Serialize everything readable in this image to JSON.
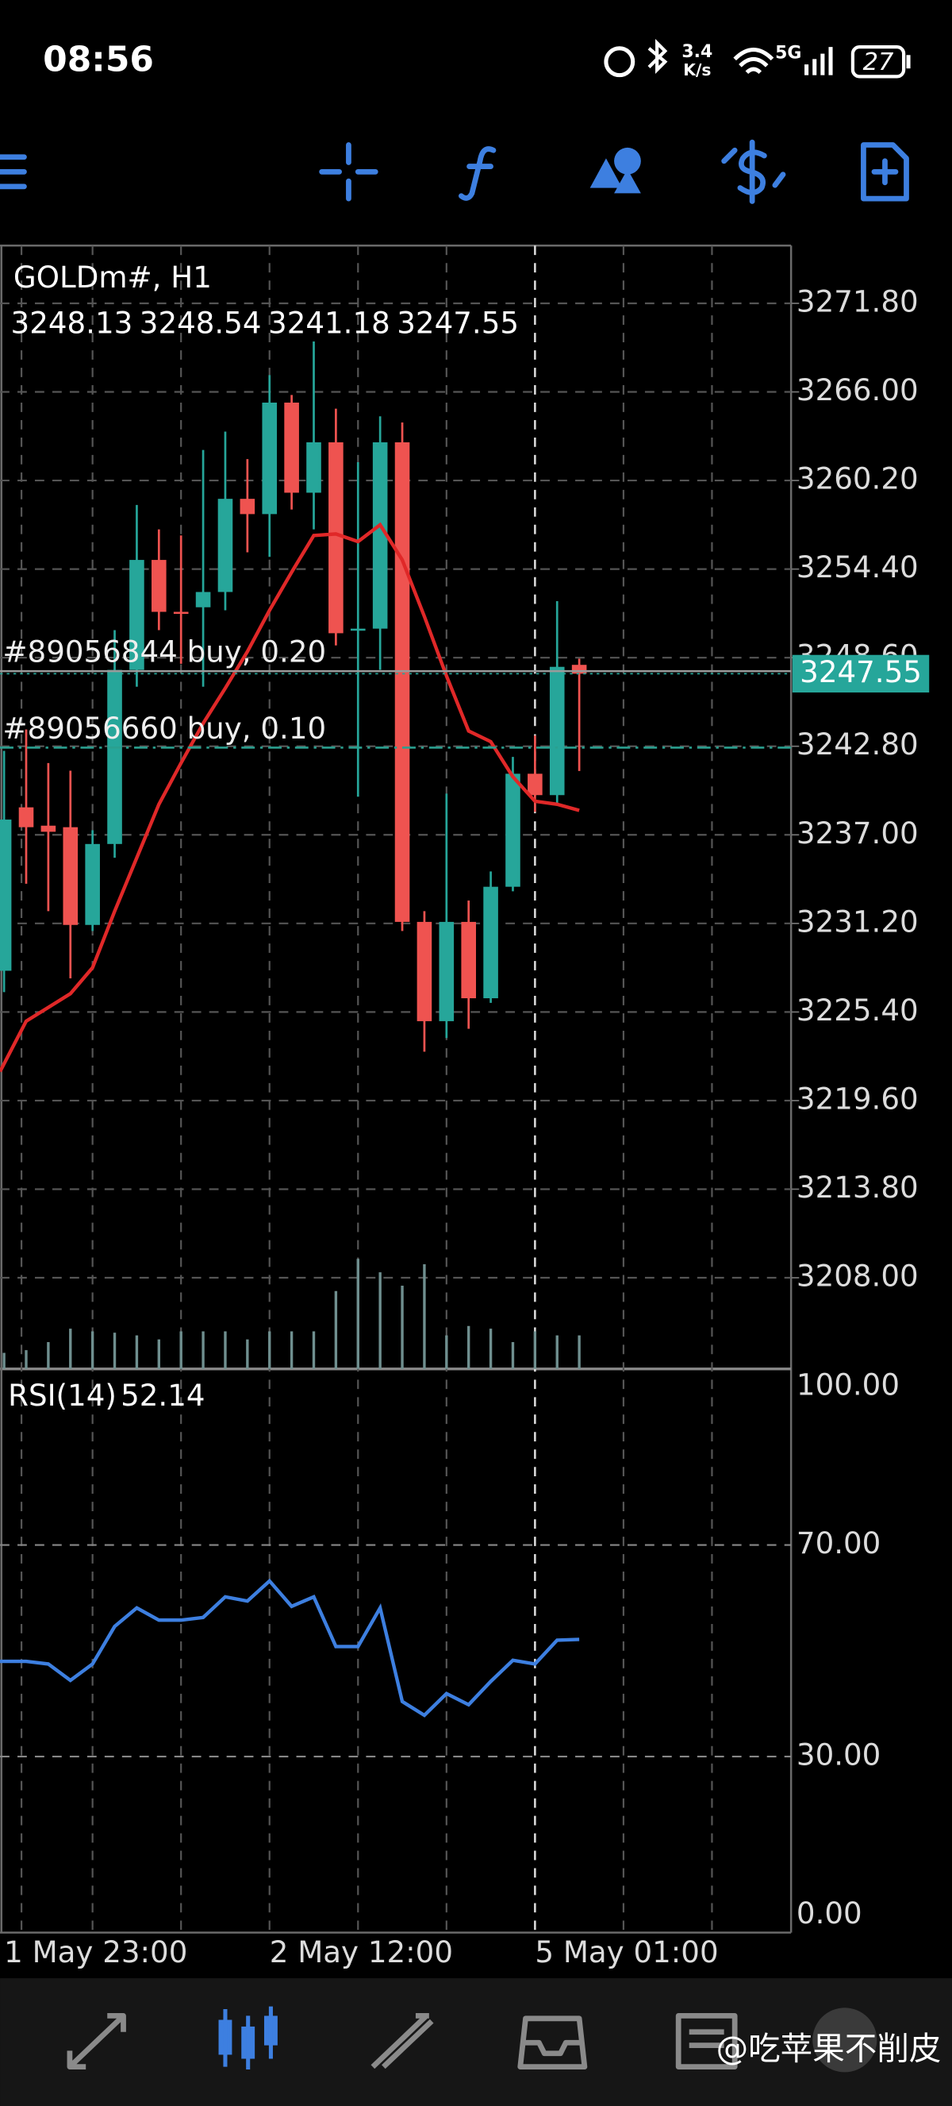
{
  "status_bar": {
    "time": "08:56",
    "net_speed": "3.4",
    "net_unit": "K/s",
    "network": "5G",
    "battery": "27"
  },
  "chart_data": {
    "type": "candlestick",
    "title": "GOLDm#, H1",
    "categories": [
      "1 May 23:00",
      null,
      null,
      null,
      null,
      null,
      null,
      null,
      null,
      null,
      null,
      null,
      "2 May 12:00",
      null,
      null,
      null,
      null,
      null,
      null,
      null,
      null,
      null,
      null,
      null,
      "5 May 01:00",
      null,
      null
    ],
    "open": [
      3228.1,
      3238.8,
      3237.6,
      3237.5,
      3231.1,
      3236.4,
      3247.8,
      3255.0,
      3251.6,
      3251.9,
      3252.9,
      3259.0,
      3258.0,
      3265.3,
      3259.4,
      3262.7,
      3250.4,
      3250.5,
      3262.7,
      3231.3,
      3224.8,
      3231.3,
      3226.3,
      3233.6,
      3241.0,
      3239.6,
      3248.13
    ],
    "high": [
      3242.5,
      3243.9,
      3241.7,
      3241.2,
      3237.3,
      3250.4,
      3258.6,
      3257.0,
      3256.6,
      3262.2,
      3263.4,
      3261.6,
      3267.1,
      3265.8,
      3269.3,
      3264.9,
      3261.4,
      3264.4,
      3264.0,
      3232.0,
      3239.7,
      3232.7,
      3234.6,
      3242.1,
      3243.5,
      3252.3,
      3248.54
    ],
    "low": [
      3226.7,
      3233.8,
      3232.0,
      3227.6,
      3230.7,
      3235.5,
      3246.7,
      3250.4,
      3248.2,
      3246.7,
      3251.7,
      3255.5,
      3255.2,
      3258.3,
      3257.0,
      3249.4,
      3239.5,
      3247.8,
      3230.7,
      3222.8,
      3223.7,
      3224.3,
      3226.0,
      3233.3,
      3238.5,
      3239.0,
      3241.18
    ],
    "close": [
      3238.0,
      3237.5,
      3237.2,
      3231.1,
      3236.4,
      3247.8,
      3255.0,
      3251.6,
      3251.5,
      3252.9,
      3259.0,
      3258.0,
      3265.3,
      3259.4,
      3262.7,
      3250.2,
      3250.5,
      3262.7,
      3231.3,
      3224.8,
      3231.3,
      3226.3,
      3233.6,
      3241.0,
      3239.6,
      3248.0,
      3247.55
    ],
    "up_color": "#26a69a",
    "down_color": "#ef5350",
    "ma": {
      "color": "#e02828",
      "values": [
        3221.5,
        3224.8,
        3225.7,
        3226.6,
        3228.3,
        3232.0,
        3235.5,
        3239.0,
        3241.7,
        3244.3,
        3246.6,
        3249.0,
        3251.7,
        3254.2,
        3256.6,
        3256.7,
        3256.2,
        3257.3,
        3255.0,
        3251.3,
        3247.4,
        3243.8,
        3243.1,
        3240.8,
        3239.2,
        3239.0,
        3238.6
      ]
    },
    "volume": {
      "color": "#6f8f8f",
      "values": [
        12,
        14,
        20,
        30,
        28,
        27,
        25,
        22,
        28,
        28,
        28,
        22,
        28,
        28,
        28,
        58,
        82,
        72,
        62,
        78,
        25,
        32,
        30,
        20,
        28,
        25,
        25
      ]
    },
    "trades": [
      {
        "label": "#89056844 buy, 0.20",
        "price": 3247.72
      },
      {
        "label": "#89056660 buy, 0.10",
        "price": 3242.71
      }
    ],
    "ylim": [
      3202.03,
      3275.58
    ],
    "yticks": [
      {
        "value": 3271.8,
        "label": "3271.80"
      },
      {
        "value": 3266.0,
        "label": "3266.00"
      },
      {
        "value": 3260.2,
        "label": "3260.20"
      },
      {
        "value": 3254.4,
        "label": "3254.40"
      },
      {
        "value": 3248.6,
        "label": "3248.60"
      },
      {
        "value": 3242.8,
        "label": "3242.80"
      },
      {
        "value": 3237.0,
        "label": "3237.00"
      },
      {
        "value": 3231.2,
        "label": "3231.20"
      },
      {
        "value": 3225.4,
        "label": "3225.40"
      },
      {
        "value": 3219.6,
        "label": "3219.60"
      },
      {
        "value": 3213.8,
        "label": "3213.80"
      },
      {
        "value": 3208.0,
        "label": "3208.00"
      }
    ],
    "grid": true,
    "rsi": {
      "name": "RSI(14)",
      "color": "#3d7fe0",
      "values": [
        48.0,
        48.0,
        47.5,
        44.4,
        47.5,
        54.6,
        58.1,
        55.8,
        55.8,
        56.3,
        60.2,
        59.4,
        63.2,
        58.4,
        60.2,
        50.8,
        50.8,
        58.1,
        40.4,
        37.8,
        41.9,
        39.8,
        44.2,
        48.2,
        47.5,
        52.0,
        52.14
      ],
      "ylim": [
        -3.3,
        103.3
      ],
      "yticks": [
        {
          "value": 100,
          "label": "100.00"
        },
        {
          "value": 70,
          "label": "70.00"
        },
        {
          "value": 30,
          "label": "30.00"
        },
        {
          "value": 0,
          "label": "0.00"
        }
      ]
    }
  },
  "watermark": "@吃苹果不削皮"
}
